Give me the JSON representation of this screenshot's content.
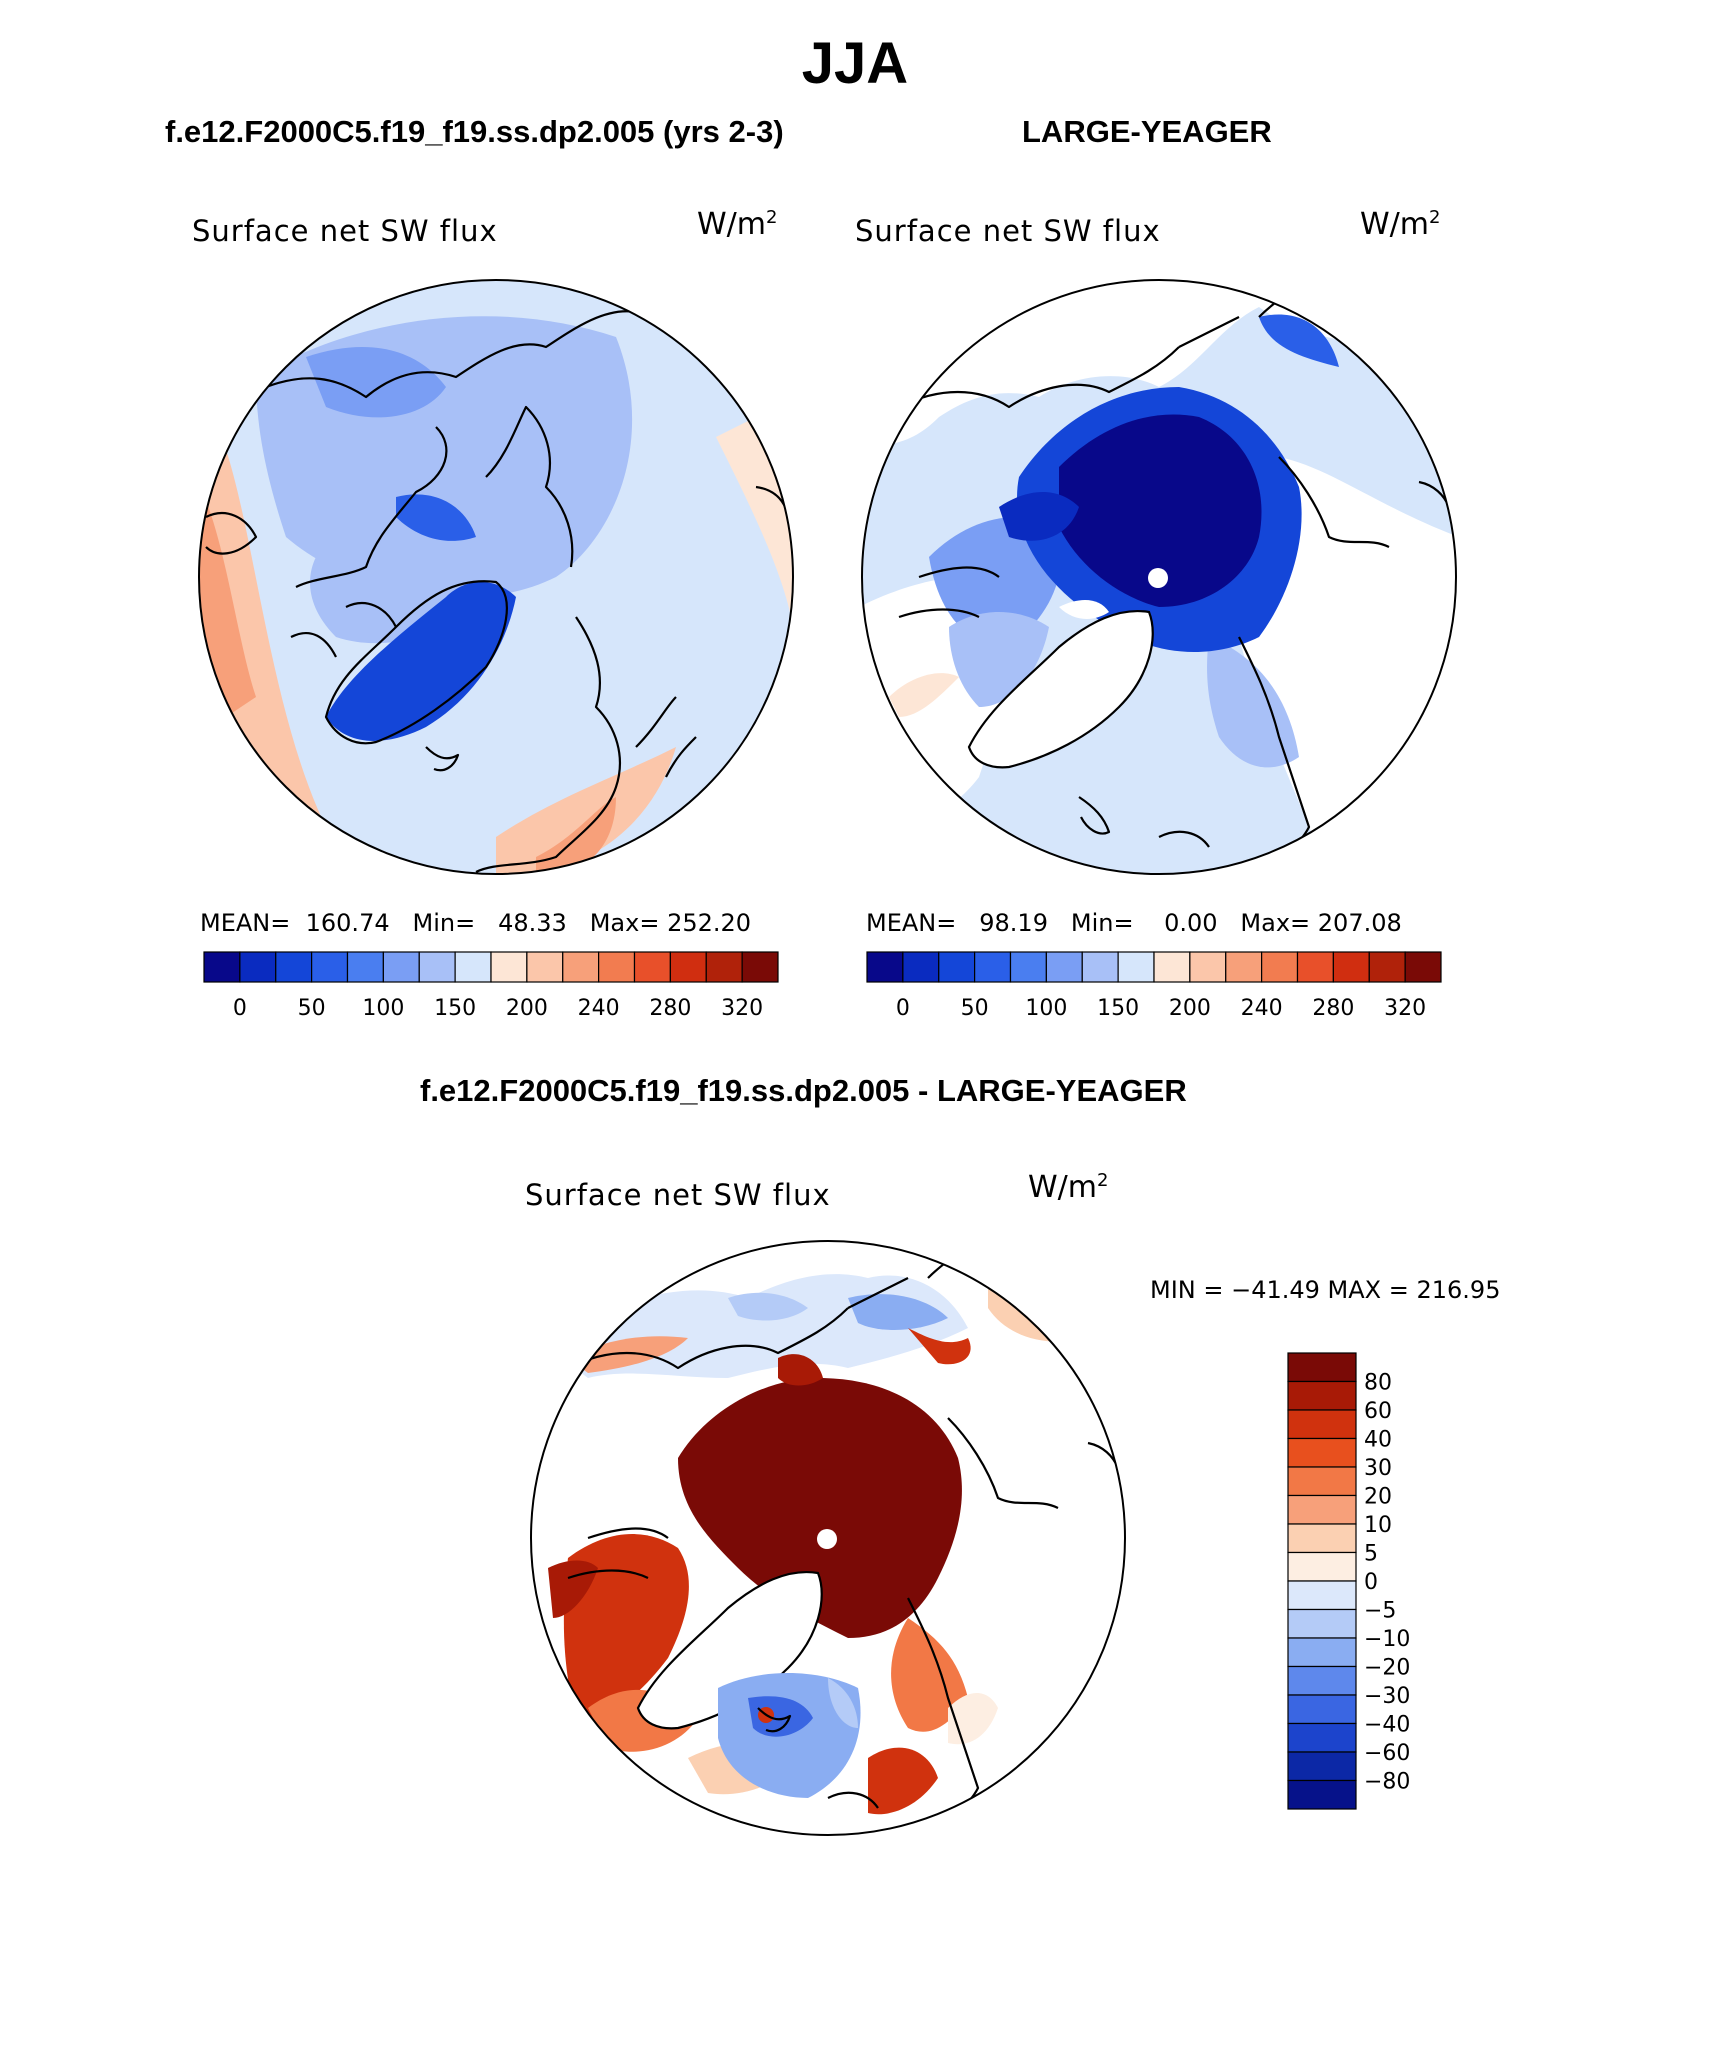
{
  "title": "JJA",
  "panels": {
    "left": {
      "case": "f.e12.F2000C5.f19_f19.ss.dp2.005 (yrs 2-3)",
      "label": "Surface net SW flux",
      "units_base": "W/m",
      "units_exp": "2",
      "mean_label": "MEAN=",
      "mean": "160.74",
      "min_label": "Min=",
      "min": "48.33",
      "max_label": "Max=",
      "max": "252.20"
    },
    "right": {
      "case": "LARGE-YEAGER",
      "label": "Surface net SW flux",
      "units_base": "W/m",
      "units_exp": "2",
      "mean_label": "MEAN=",
      "mean": "98.19",
      "min_label": "Min=",
      "min": "0.00",
      "max_label": "Max=",
      "max": "207.08"
    },
    "diff": {
      "case": "f.e12.F2000C5.f19_f19.ss.dp2.005 - LARGE-YEAGER",
      "label": "Surface net SW flux",
      "units_base": "W/m",
      "units_exp": "2",
      "minmax": "MIN = −41.49 MAX = 216.95"
    }
  },
  "abs_colorbar": {
    "colors": [
      "#08088a",
      "#0a2bc0",
      "#1446d8",
      "#2a5fe8",
      "#4a7ef0",
      "#7a9ef4",
      "#a8c0f7",
      "#d6e6fb",
      "#fde6d6",
      "#fbc6aa",
      "#f7a07a",
      "#f27c50",
      "#e8502a",
      "#d02e10",
      "#b0220a",
      "#7a0a06"
    ],
    "ticks": [
      "0",
      "50",
      "100",
      "150",
      "200",
      "240",
      "280",
      "320"
    ]
  },
  "diff_colorbar": {
    "colors": [
      "#7a0a06",
      "#a81a06",
      "#d0320e",
      "#e8501e",
      "#f27846",
      "#f7a07a",
      "#fbd0b2",
      "#fdeee2",
      "#dce8fb",
      "#b4cbf7",
      "#8aadf2",
      "#5e88ec",
      "#3a66e2",
      "#1c44cc",
      "#0c28a6",
      "#06128a"
    ],
    "ticks": [
      "80",
      "60",
      "40",
      "30",
      "20",
      "10",
      "5",
      "0",
      "−5",
      "−10",
      "−20",
      "−30",
      "−40",
      "−60",
      "−80"
    ]
  },
  "colors": {
    "background": "#ffffff",
    "ink": "#000000",
    "pole_marker": "#ffffff"
  }
}
